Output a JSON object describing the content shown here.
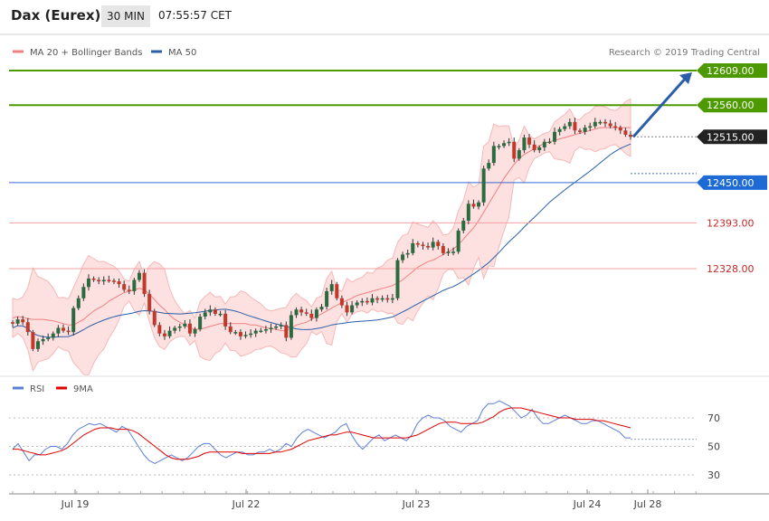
{
  "header": {
    "title": "Dax (Eurex)",
    "interval": "30 MIN",
    "time": "07:55:57 CET"
  },
  "legend": {
    "ma20": "MA 20 + Bollinger Bands",
    "ma50": "MA 50",
    "credit": "Research © 2019 Trading Central"
  },
  "rsi_legend": {
    "rsi": "RSI",
    "ma9": "9MA"
  },
  "colors": {
    "support_resistance": "#4c9a00",
    "ma20_band": "#f08080",
    "ma50": "#2a5ea8",
    "price_tag": "#222222",
    "rsi": "#5b7fd6",
    "rsi_ma": "#e00000",
    "candle_up": "#2c6b3f",
    "candle_down": "#c0392b"
  },
  "chart_data": [
    {
      "type": "candlestick",
      "price_levels": [
        {
          "label": "12609.00",
          "value": 12609,
          "kind": "resistance"
        },
        {
          "label": "12560.00",
          "value": 12560,
          "kind": "resistance"
        },
        {
          "label": "12515.00",
          "value": 12515,
          "kind": "last"
        },
        {
          "label": "12450.00",
          "value": 12450,
          "kind": "ma50"
        },
        {
          "label": "12393.00",
          "value": 12393,
          "kind": "support"
        },
        {
          "label": "12328.00",
          "value": 12328,
          "kind": "support"
        }
      ],
      "ylim": [
        12210,
        12640
      ],
      "close": [
        12250,
        12256,
        12252,
        12238,
        12214,
        12225,
        12228,
        12230,
        12236,
        12244,
        12240,
        12238,
        12272,
        12286,
        12302,
        12314,
        12312,
        12310,
        12312,
        12311,
        12310,
        12306,
        12298,
        12296,
        12312,
        12322,
        12292,
        12268,
        12248,
        12236,
        12232,
        12240,
        12244,
        12246,
        12250,
        12236,
        12242,
        12260,
        12266,
        12270,
        12264,
        12264,
        12246,
        12238,
        12238,
        12232,
        12234,
        12236,
        12240,
        12240,
        12242,
        12244,
        12246,
        12248,
        12230,
        12262,
        12270,
        12266,
        12264,
        12258,
        12270,
        12274,
        12296,
        12306,
        12286,
        12276,
        12266,
        12276,
        12280,
        12282,
        12280,
        12286,
        12284,
        12286,
        12284,
        12286,
        12340,
        12348,
        12350,
        12364,
        12362,
        12360,
        12358,
        12366,
        12360,
        12350,
        12352,
        12352,
        12382,
        12396,
        12420,
        12416,
        12422,
        12470,
        12478,
        12502,
        12502,
        12506,
        12508,
        12484,
        12496,
        12514,
        12504,
        12496,
        12500,
        12508,
        12508,
        12522,
        12526,
        12530,
        12536,
        12524,
        12522,
        12528,
        12530,
        12536,
        12536,
        12534,
        12530,
        12528,
        12524,
        12518,
        12515
      ],
      "ma20": [
        12258,
        12260,
        12259,
        12257,
        12256,
        12256,
        12256,
        12255,
        12254,
        12252,
        12250,
        12248,
        12248,
        12252,
        12256,
        12262,
        12268,
        12272,
        12276,
        12282,
        12286,
        12290,
        12294,
        12296,
        12298,
        12300,
        12298,
        12292,
        12284,
        12276,
        12270,
        12262,
        12256,
        12252,
        12248,
        12244,
        12242,
        12242,
        12244,
        12246,
        12248,
        12250,
        12250,
        12250,
        12250,
        12250,
        12250,
        12248,
        12248,
        12246,
        12244,
        12243,
        12242,
        12240,
        12240,
        12244,
        12248,
        12250,
        12252,
        12256,
        12260,
        12264,
        12268,
        12272,
        12276,
        12280,
        12283,
        12286,
        12290,
        12292,
        12294,
        12296,
        12298,
        12300,
        12302,
        12304,
        12308,
        12312,
        12318,
        12324,
        12330,
        12334,
        12338,
        12340,
        12344,
        12348,
        12352,
        12356,
        12362,
        12370,
        12378,
        12386,
        12396,
        12408,
        12420,
        12432,
        12444,
        12456,
        12466,
        12476,
        12484,
        12490,
        12494,
        12498,
        12502,
        12506,
        12508,
        12510,
        12512,
        12514,
        12516,
        12518,
        12520,
        12522,
        12524,
        12526,
        12528,
        12528,
        12528,
        12528,
        12528,
        12528,
        12528
      ]
    },
    {
      "type": "line",
      "title": "RSI",
      "ylim": [
        20,
        90
      ],
      "y_ticks": [
        "70",
        "50",
        "30"
      ],
      "x_labels": [
        "Jul 19",
        "Jul 22",
        "Jul 23",
        "Jul 24",
        "Jul 28"
      ],
      "series": [
        {
          "name": "RSI",
          "values": [
            48,
            52,
            46,
            40,
            44,
            44,
            48,
            50,
            50,
            48,
            52,
            58,
            62,
            64,
            66,
            65,
            66,
            64,
            62,
            60,
            64,
            62,
            56,
            50,
            44,
            40,
            38,
            40,
            42,
            44,
            42,
            40,
            42,
            46,
            50,
            52,
            52,
            48,
            44,
            42,
            44,
            46,
            46,
            44,
            44,
            46,
            46,
            48,
            46,
            48,
            52,
            50,
            56,
            60,
            62,
            60,
            58,
            56,
            58,
            60,
            64,
            66,
            58,
            52,
            48,
            52,
            56,
            58,
            54,
            56,
            58,
            56,
            54,
            58,
            66,
            70,
            72,
            70,
            70,
            68,
            64,
            62,
            60,
            64,
            66,
            68,
            76,
            80,
            80,
            82,
            80,
            78,
            74,
            70,
            72,
            76,
            70,
            66,
            66,
            68,
            70,
            72,
            70,
            68,
            66,
            66,
            68,
            68,
            66,
            64,
            62,
            60,
            56,
            56
          ]
        },
        {
          "name": "9MA",
          "values": [
            48,
            48,
            47,
            46,
            45,
            44,
            44,
            45,
            46,
            47,
            49,
            52,
            55,
            58,
            60,
            62,
            63,
            63,
            63,
            62,
            62,
            62,
            61,
            59,
            56,
            53,
            50,
            47,
            44,
            42,
            41,
            41,
            41,
            42,
            43,
            45,
            46,
            46,
            46,
            46,
            46,
            46,
            45,
            45,
            45,
            45,
            45,
            45,
            46,
            46,
            47,
            48,
            50,
            52,
            54,
            55,
            56,
            57,
            58,
            58,
            59,
            60,
            60,
            59,
            58,
            57,
            56,
            56,
            56,
            56,
            56,
            56,
            56,
            57,
            58,
            60,
            62,
            64,
            66,
            67,
            67,
            67,
            66,
            66,
            66,
            66,
            67,
            69,
            71,
            74,
            76,
            77,
            77,
            77,
            76,
            75,
            74,
            73,
            72,
            71,
            70,
            70,
            70,
            69,
            69,
            69,
            69,
            68,
            68,
            67,
            66,
            65,
            64,
            63
          ]
        }
      ]
    }
  ]
}
